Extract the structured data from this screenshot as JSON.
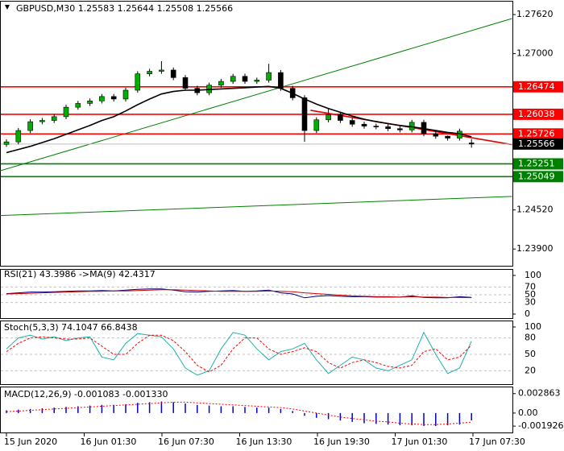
{
  "chart_data": [
    {
      "type": "candlestick",
      "title": "GBPUSD,M30  1.25583 1.25644 1.25508 1.25566",
      "open": [
        1.2556,
        1.256,
        1.2578,
        1.2592,
        1.2594,
        1.26,
        1.2615,
        1.2621,
        1.2625,
        1.2632,
        1.2628,
        1.2642,
        1.2668,
        1.2672,
        1.2674,
        1.2662,
        1.2645,
        1.2638,
        1.265,
        1.2656,
        1.2664,
        1.2656,
        1.2658,
        1.267,
        1.2645,
        1.263,
        1.2578,
        1.2595,
        1.2603,
        1.2594,
        1.2588,
        1.2585,
        1.2584,
        1.2581,
        1.2579,
        1.2591,
        1.2573,
        1.2569,
        1.2566,
        1.25583
      ],
      "high": [
        1.2564,
        1.2582,
        1.2596,
        1.2598,
        1.2604,
        1.2619,
        1.2625,
        1.2629,
        1.2636,
        1.2636,
        1.2646,
        1.2672,
        1.2676,
        1.2688,
        1.2678,
        1.2666,
        1.2649,
        1.2654,
        1.266,
        1.2668,
        1.2668,
        1.2662,
        1.2684,
        1.2674,
        1.2649,
        1.2634,
        1.2599,
        1.2612,
        1.2607,
        1.2598,
        1.2592,
        1.2589,
        1.2588,
        1.2585,
        1.2595,
        1.2595,
        1.2577,
        1.257,
        1.2581,
        1.25644
      ],
      "low": [
        1.2552,
        1.2556,
        1.2574,
        1.2588,
        1.259,
        1.2596,
        1.2611,
        1.2617,
        1.2621,
        1.2624,
        1.2624,
        1.2638,
        1.2664,
        1.2668,
        1.2658,
        1.2641,
        1.2634,
        1.2634,
        1.2646,
        1.2652,
        1.2652,
        1.2652,
        1.2654,
        1.2641,
        1.2626,
        1.256,
        1.2574,
        1.2591,
        1.259,
        1.2584,
        1.2581,
        1.258,
        1.2577,
        1.2575,
        1.2575,
        1.2569,
        1.2565,
        1.2562,
        1.2562,
        1.25508
      ],
      "close": [
        1.256,
        1.2578,
        1.2592,
        1.2594,
        1.26,
        1.2615,
        1.2621,
        1.2625,
        1.2632,
        1.2628,
        1.2642,
        1.2668,
        1.2672,
        1.2674,
        1.2662,
        1.2645,
        1.2638,
        1.265,
        1.2656,
        1.2664,
        1.2656,
        1.2658,
        1.267,
        1.2645,
        1.263,
        1.2578,
        1.2595,
        1.2603,
        1.2594,
        1.2588,
        1.2585,
        1.2584,
        1.2581,
        1.2579,
        1.2591,
        1.2573,
        1.2569,
        1.2566,
        1.2577,
        1.25566
      ],
      "bull_color": "#00b000",
      "bear_color": "#000000",
      "ma": {
        "color": "#000000",
        "values": [
          1.2543,
          1.2548,
          1.2553,
          1.2559,
          1.2565,
          1.2572,
          1.2579,
          1.2586,
          1.2594,
          1.26,
          1.2609,
          1.2619,
          1.2628,
          1.2636,
          1.264,
          1.2642,
          1.2642,
          1.2643,
          1.2644,
          1.2645,
          1.2646,
          1.2647,
          1.2648,
          1.2645,
          1.2637,
          1.2628,
          1.262,
          1.2613,
          1.2607,
          1.2601,
          1.2596,
          1.2592,
          1.2589,
          1.2586,
          1.2584,
          1.2581,
          1.2578,
          1.2575,
          1.2573,
          1.2568
        ]
      },
      "ylim": [
        1.2366,
        1.278
      ],
      "yticks": [
        {
          "value": 1.239,
          "label": "1.23900"
        },
        {
          "value": 1.2452,
          "label": "1.24520"
        },
        {
          "value": 1.27,
          "label": "1.27000"
        },
        {
          "value": 1.2762,
          "label": "1.27620"
        }
      ],
      "levels": [
        {
          "value": 1.26474,
          "color": "#ff0000"
        },
        {
          "value": 1.26038,
          "color": "#ff0000"
        },
        {
          "value": 1.25726,
          "color": "#ff0000"
        },
        {
          "value": 1.25251,
          "color": "#008000"
        },
        {
          "value": 1.25049,
          "color": "#008000"
        }
      ],
      "current_price": 1.25566,
      "trendlines": [
        {
          "color": "#008000",
          "x": [
            -0.54,
            42.4
          ],
          "y": [
            1.2514,
            1.27557
          ]
        },
        {
          "color": "#008000",
          "x": [
            -0.54,
            42.4
          ],
          "y": [
            1.24431,
            1.24735
          ]
        },
        {
          "color": "#e00000",
          "x": [
            25.5,
            42.4
          ],
          "y": [
            1.26101,
            1.25557
          ]
        }
      ],
      "xlabels": [
        "15 Jun 2020",
        "16 Jun 01:30",
        "16 Jun 07:30",
        "16 Jun 13:30",
        "16 Jun 19:30",
        "17 Jun 01:30",
        "17 Jun 07:30"
      ]
    },
    {
      "type": "line",
      "title": "RSI(21) 43.3986 ->MA(9) 42.4317",
      "series": [
        {
          "color": "#000080",
          "values": [
            53,
            55,
            57,
            57,
            58,
            59,
            60,
            60,
            61,
            60,
            62,
            64,
            65,
            65,
            62,
            58,
            57,
            59,
            60,
            61,
            59,
            60,
            62,
            55,
            52,
            42,
            46,
            48,
            46,
            45,
            45,
            44,
            44,
            44,
            47,
            43,
            42,
            42,
            45,
            43.3986
          ]
        },
        {
          "color": "#cc0000",
          "values": [
            52,
            53,
            54,
            55,
            56,
            57,
            58,
            59,
            59,
            60,
            60,
            61,
            62,
            63,
            63,
            62,
            61,
            60,
            59,
            59,
            59,
            59,
            60,
            59,
            58,
            55,
            53,
            51,
            49,
            47,
            46,
            45,
            45,
            44,
            45,
            44,
            44,
            43,
            43,
            42.4317
          ]
        }
      ],
      "ylim": [
        0,
        100
      ],
      "yticks": [
        0,
        30,
        50,
        70,
        100
      ]
    },
    {
      "type": "line",
      "title": "Stoch(5,3,3) 74.1047 66.8438",
      "series": [
        {
          "color": "#20b2aa",
          "values": [
            60,
            80,
            85,
            78,
            82,
            75,
            80,
            82,
            45,
            40,
            70,
            88,
            85,
            82,
            60,
            25,
            12,
            20,
            60,
            90,
            85,
            60,
            40,
            55,
            60,
            70,
            40,
            15,
            30,
            45,
            40,
            25,
            20,
            30,
            40,
            90,
            50,
            15,
            25,
            74.1047
          ]
        },
        {
          "color": "#ff0000",
          "dashed": true,
          "values": [
            55,
            70,
            80,
            82,
            80,
            78,
            78,
            80,
            65,
            50,
            50,
            70,
            85,
            85,
            75,
            55,
            30,
            18,
            30,
            60,
            80,
            80,
            60,
            50,
            55,
            62,
            55,
            35,
            25,
            35,
            40,
            35,
            28,
            25,
            30,
            55,
            60,
            40,
            45,
            66.8438
          ]
        }
      ],
      "ylim": [
        0,
        100
      ],
      "yticks": [
        20,
        50,
        80,
        100
      ]
    },
    {
      "type": "macd",
      "title": "MACD(12,26,9) -0.001083 -0.001330",
      "series": [
        {
          "color": "#0000cc",
          "values": [
            0.0004,
            0.0005,
            0.0006,
            0.0007,
            0.0008,
            0.0009,
            0.001,
            0.0011,
            0.0012,
            0.0012,
            0.0013,
            0.0015,
            0.0016,
            0.0017,
            0.0016,
            0.0014,
            0.0012,
            0.0011,
            0.001,
            0.001,
            0.0009,
            0.0008,
            0.0008,
            0.0006,
            0.0003,
            -0.0004,
            -0.0007,
            -0.0009,
            -0.0011,
            -0.0013,
            -0.0015,
            -0.0016,
            -0.0017,
            -0.0018,
            -0.0018,
            -0.0019,
            -0.0019,
            -0.0018,
            -0.0017,
            -0.001083
          ]
        },
        {
          "color": "#ff0000",
          "dashed": true,
          "values": [
            0.0002,
            0.0003,
            0.0004,
            0.0005,
            0.0006,
            0.0007,
            0.0008,
            0.0009,
            0.001,
            0.0011,
            0.0012,
            0.0013,
            0.0014,
            0.0015,
            0.0016,
            0.0016,
            0.0015,
            0.0014,
            0.0013,
            0.0012,
            0.0011,
            0.001,
            0.0009,
            0.0008,
            0.0006,
            0.0003,
            0,
            -0.0003,
            -0.0006,
            -0.0008,
            -0.001,
            -0.0012,
            -0.0013,
            -0.0015,
            -0.0016,
            -0.0017,
            -0.0017,
            -0.0016,
            -0.0015,
            -0.00133
          ]
        }
      ],
      "ylim": [
        -0.00286,
        0.0039
      ],
      "yticks": [
        -0.001926,
        {
          "value": 0,
          "label": "0.00"
        },
        0.002863
      ]
    }
  ]
}
